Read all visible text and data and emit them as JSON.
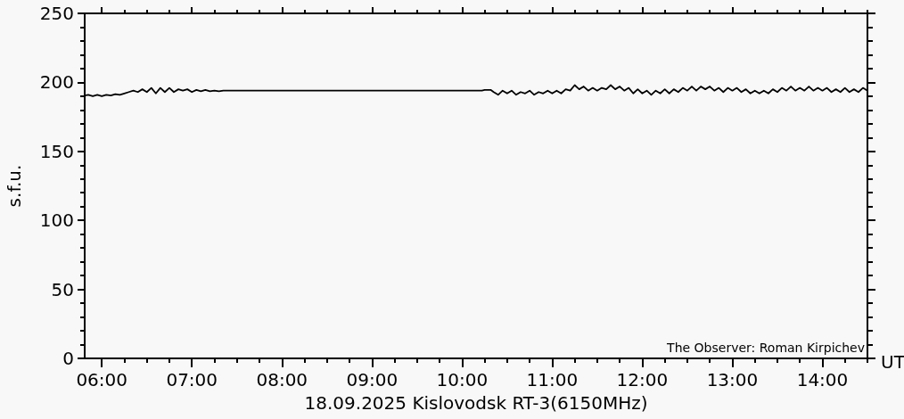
{
  "chart_data": {
    "type": "line",
    "xlabel": "18.09.2025 Kislovodsk RT-3(6150MHz)",
    "ylabel": "s.f.u.",
    "annotations": [
      "The Observer: Roman Kirpichev",
      "UT"
    ],
    "xlim": [
      5.81,
      14.5
    ],
    "xticks": [
      {
        "value": 6,
        "label": "06:00"
      },
      {
        "value": 6.25,
        "label": null
      },
      {
        "value": 6.5,
        "label": null
      },
      {
        "value": 6.75,
        "label": null
      },
      {
        "value": 7,
        "label": "07:00"
      },
      {
        "value": 7.25,
        "label": null
      },
      {
        "value": 7.5,
        "label": null
      },
      {
        "value": 7.75,
        "label": null
      },
      {
        "value": 8,
        "label": "08:00"
      },
      {
        "value": 8.25,
        "label": null
      },
      {
        "value": 8.5,
        "label": null
      },
      {
        "value": 8.75,
        "label": null
      },
      {
        "value": 9,
        "label": "09:00"
      },
      {
        "value": 9.25,
        "label": null
      },
      {
        "value": 9.5,
        "label": null
      },
      {
        "value": 9.75,
        "label": null
      },
      {
        "value": 10,
        "label": "10:00"
      },
      {
        "value": 10.25,
        "label": null
      },
      {
        "value": 10.5,
        "label": null
      },
      {
        "value": 10.75,
        "label": null
      },
      {
        "value": 11,
        "label": "11:00"
      },
      {
        "value": 11.25,
        "label": null
      },
      {
        "value": 11.5,
        "label": null
      },
      {
        "value": 11.75,
        "label": null
      },
      {
        "value": 12,
        "label": "12:00"
      },
      {
        "value": 12.25,
        "label": null
      },
      {
        "value": 12.5,
        "label": null
      },
      {
        "value": 12.75,
        "label": null
      },
      {
        "value": 13,
        "label": "13:00"
      },
      {
        "value": 13.25,
        "label": null
      },
      {
        "value": 13.5,
        "label": null
      },
      {
        "value": 13.75,
        "label": null
      },
      {
        "value": 14,
        "label": "14:00"
      },
      {
        "value": 14.25,
        "label": null
      },
      {
        "value": 14.5,
        "label": null
      }
    ],
    "ylim": [
      0,
      250
    ],
    "yticks": [
      0,
      {
        "value": 10,
        "label": null
      },
      {
        "value": 20,
        "label": null
      },
      {
        "value": 30,
        "label": null
      },
      {
        "value": 40,
        "label": null
      },
      50,
      {
        "value": 60,
        "label": null
      },
      {
        "value": 70,
        "label": null
      },
      {
        "value": 80,
        "label": null
      },
      {
        "value": 90,
        "label": null
      },
      100,
      {
        "value": 110,
        "label": null
      },
      {
        "value": 120,
        "label": null
      },
      {
        "value": 130,
        "label": null
      },
      {
        "value": 140,
        "label": null
      },
      150,
      {
        "value": 160,
        "label": null
      },
      {
        "value": 170,
        "label": null
      },
      {
        "value": 180,
        "label": null
      },
      {
        "value": 190,
        "label": null
      },
      200,
      {
        "value": 210,
        "label": null
      },
      {
        "value": 220,
        "label": null
      },
      {
        "value": 230,
        "label": null
      },
      {
        "value": 240,
        "label": null
      },
      250
    ],
    "marker": "none",
    "line_style": "solid",
    "x": [
      5.81,
      5.85,
      5.9,
      5.95,
      6.0,
      6.05,
      6.1,
      6.15,
      6.2,
      6.25,
      6.3,
      6.35,
      6.4,
      6.45,
      6.5,
      6.55,
      6.6,
      6.65,
      6.7,
      6.75,
      6.8,
      6.85,
      6.9,
      6.95,
      7.0,
      7.05,
      7.1,
      7.15,
      7.2,
      7.25,
      7.3,
      7.35,
      10.22,
      10.25,
      10.32,
      10.35,
      10.4,
      10.45,
      10.5,
      10.55,
      10.6,
      10.65,
      10.7,
      10.75,
      10.8,
      10.85,
      10.9,
      10.95,
      11.0,
      11.05,
      11.1,
      11.15,
      11.2,
      11.25,
      11.3,
      11.35,
      11.4,
      11.45,
      11.5,
      11.55,
      11.6,
      11.65,
      11.7,
      11.75,
      11.8,
      11.85,
      11.9,
      11.95,
      12.0,
      12.05,
      12.1,
      12.15,
      12.2,
      12.25,
      12.3,
      12.35,
      12.4,
      12.45,
      12.5,
      12.55,
      12.6,
      12.65,
      12.7,
      12.75,
      12.8,
      12.85,
      12.9,
      12.95,
      13.0,
      13.05,
      13.1,
      13.15,
      13.2,
      13.25,
      13.3,
      13.35,
      13.4,
      13.45,
      13.5,
      13.55,
      13.6,
      13.65,
      13.7,
      13.75,
      13.8,
      13.85,
      13.9,
      13.95,
      14.0,
      14.05,
      14.1,
      14.15,
      14.2,
      14.25,
      14.3,
      14.35,
      14.4,
      14.45,
      14.5
    ],
    "series": [
      {
        "color": "#000000",
        "values": [
          190.5,
          191,
          190,
          191,
          190,
          191,
          190.5,
          191.5,
          191,
          192,
          193,
          194,
          193,
          195,
          193,
          196,
          192,
          196,
          193,
          196,
          193,
          195,
          194,
          195,
          193,
          194.5,
          193.5,
          194.5,
          193.5,
          194,
          193.5,
          194,
          194,
          194.5,
          194.5,
          193,
          191,
          194,
          192,
          194,
          191,
          193,
          192,
          194,
          191,
          193,
          192,
          194,
          192,
          194,
          192,
          195,
          194,
          198,
          195,
          197,
          194,
          196,
          194,
          196,
          195,
          198,
          195,
          197,
          194,
          196,
          192,
          195,
          192,
          194,
          191,
          194,
          192,
          195,
          192,
          195,
          193,
          196,
          194,
          197,
          194,
          197,
          195,
          197,
          194,
          196,
          193,
          196,
          194,
          196,
          193,
          195,
          192,
          194,
          192,
          194,
          192,
          195,
          193,
          196,
          194,
          197,
          194,
          196,
          194,
          197,
          194,
          196,
          194,
          196,
          193,
          195,
          193,
          196,
          193,
          195,
          193,
          196,
          194
        ]
      }
    ]
  }
}
